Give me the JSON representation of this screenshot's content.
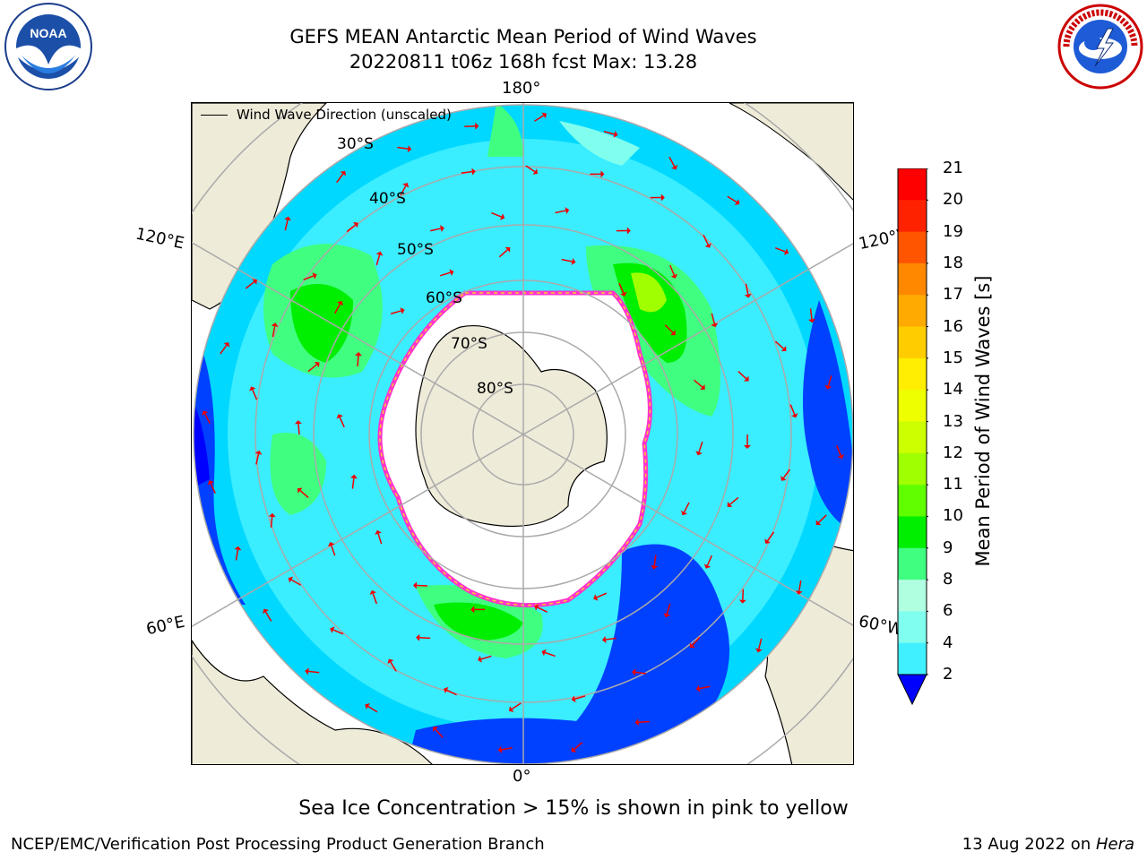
{
  "header": {
    "title_line1": "GEFS MEAN Antarctic Mean Period of Wind Waves",
    "title_line2": "20220811 t06z 168h fcst   Max: 13.28"
  },
  "map": {
    "projection": "south-polar-stereographic",
    "longitude_labels": {
      "top": "180°",
      "bottom": "0°",
      "upper_left": "120°E",
      "upper_right": "120°W",
      "lower_left": "60°E",
      "lower_right": "60°W"
    },
    "latitude_labels": [
      "30°S",
      "40°S",
      "50°S",
      "60°S",
      "70°S",
      "80°S"
    ],
    "legend_label": "Wind Wave Direction (unscaled)",
    "land_color": "#efebd9",
    "ice_edge_colors": [
      "#ff33cc",
      "#ffcc33"
    ],
    "arrow_color": "#ee0000"
  },
  "colorbar": {
    "label": "Mean Period of Wind Waves [s]",
    "ticks": [
      "2",
      "4",
      "6",
      "8",
      "9",
      "10",
      "11",
      "12",
      "13",
      "14",
      "15",
      "16",
      "17",
      "18",
      "19",
      "20",
      "21"
    ],
    "colors": [
      "#0040ff",
      "#00d8ff",
      "#40f0ff",
      "#80ffee",
      "#b0ffe0",
      "#40ff80",
      "#00ee00",
      "#60ff00",
      "#a0ff00",
      "#ccff00",
      "#eeff00",
      "#ffee00",
      "#ffcc00",
      "#ffaa00",
      "#ff8800",
      "#ff5500",
      "#ff2200",
      "#ff0000"
    ],
    "under_color": "#0000ff"
  },
  "notes": {
    "ice_note": "Sea Ice Concentration > 15% is shown in pink to yellow",
    "footer_left": "NCEP/EMC/Verification Post Processing Product Generation Branch",
    "footer_right_prefix": "13 Aug 2022 on ",
    "footer_right_machine": "Hera"
  },
  "logos": {
    "left": "noaa-logo",
    "right": "national-weather-service-logo"
  }
}
